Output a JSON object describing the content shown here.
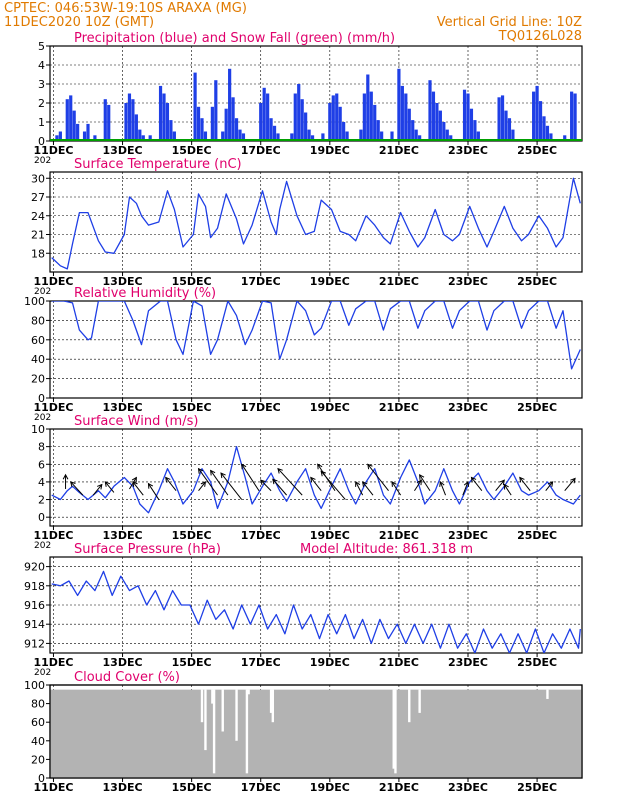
{
  "header": {
    "station": "CPTEC:   046:53W-19:10S   ARAXA (MG)",
    "run": "11DEC2020 10Z (GMT)",
    "grid_note": "Vertical Grid Line: 10Z",
    "code": "TQ0126L028"
  },
  "colors": {
    "header": "#e07a00",
    "title": "#e0006c",
    "line": "#1f3fe6",
    "precip": "#1f3fe6",
    "snow": "#00a000",
    "cloud": "#b3b3b3"
  },
  "x_axis": {
    "ticks": [
      "11DEC",
      "13DEC",
      "15DEC",
      "17DEC",
      "19DEC",
      "21DEC",
      "23DEC",
      "25DEC"
    ],
    "tick_days": [
      0,
      2,
      4,
      6,
      8,
      10,
      12,
      14
    ],
    "range_days": [
      -0.1,
      15.3
    ],
    "year_fragment": "202"
  },
  "chart_data": [
    {
      "type": "bar",
      "title": "Precipitation (blue) and Snow Fall (green) (mm/h)",
      "ylim": [
        0,
        5
      ],
      "yticks": [
        0,
        1,
        2,
        3,
        4,
        5
      ],
      "series": [
        {
          "name": "Precipitation",
          "x": [
            0.1,
            0.2,
            0.4,
            0.5,
            0.6,
            0.7,
            0.9,
            1.0,
            1.2,
            1.5,
            1.6,
            2.1,
            2.2,
            2.3,
            2.4,
            2.5,
            2.6,
            2.8,
            3.1,
            3.2,
            3.3,
            3.4,
            3.5,
            4.1,
            4.2,
            4.3,
            4.4,
            4.6,
            4.7,
            4.9,
            5.0,
            5.1,
            5.2,
            5.3,
            5.4,
            5.5,
            6.0,
            6.1,
            6.2,
            6.3,
            6.4,
            6.5,
            6.9,
            7.0,
            7.1,
            7.2,
            7.3,
            7.4,
            7.5,
            7.8,
            8.0,
            8.1,
            8.2,
            8.3,
            8.4,
            8.5,
            8.9,
            9.0,
            9.1,
            9.2,
            9.3,
            9.4,
            9.5,
            9.8,
            10.0,
            10.1,
            10.2,
            10.3,
            10.4,
            10.5,
            10.6,
            10.9,
            11.0,
            11.1,
            11.2,
            11.3,
            11.4,
            11.5,
            11.9,
            12.0,
            12.1,
            12.2,
            12.3,
            12.9,
            13.0,
            13.1,
            13.2,
            13.3,
            13.9,
            14.0,
            14.1,
            14.2,
            14.3,
            14.4,
            14.8,
            15.0,
            15.1
          ],
          "values": [
            0.3,
            0.5,
            2.2,
            2.4,
            1.6,
            0.9,
            0.5,
            0.9,
            0.3,
            2.2,
            1.9,
            2.0,
            2.5,
            2.2,
            1.4,
            0.6,
            0.3,
            0.3,
            2.9,
            2.5,
            2.0,
            1.1,
            0.5,
            3.6,
            1.8,
            1.2,
            0.5,
            1.8,
            3.2,
            0.5,
            1.7,
            3.8,
            2.3,
            1.2,
            0.6,
            0.4,
            2.0,
            2.8,
            2.5,
            1.2,
            0.8,
            0.4,
            0.4,
            2.5,
            3.0,
            2.2,
            1.5,
            0.6,
            0.3,
            0.4,
            2.0,
            2.4,
            2.5,
            1.8,
            1.0,
            0.5,
            0.6,
            2.5,
            3.5,
            2.6,
            1.9,
            1.1,
            0.5,
            0.5,
            3.8,
            2.9,
            2.5,
            1.7,
            1.1,
            0.6,
            0.3,
            3.2,
            2.6,
            2.0,
            1.6,
            1.0,
            0.6,
            0.3,
            2.7,
            2.5,
            1.7,
            1.1,
            0.5,
            2.3,
            2.4,
            1.6,
            1.2,
            0.6,
            2.6,
            2.9,
            2.1,
            1.3,
            0.8,
            0.4,
            0.3,
            2.6,
            2.5
          ]
        },
        {
          "name": "Snow Fall",
          "x": [],
          "values": []
        }
      ]
    },
    {
      "type": "line",
      "title": "Surface Temperature (nC)",
      "ylim": [
        15,
        31
      ],
      "yticks": [
        18,
        21,
        24,
        27,
        30
      ],
      "x": [
        -0.05,
        0.2,
        0.4,
        0.55,
        0.75,
        1.0,
        1.3,
        1.5,
        1.75,
        2.05,
        2.2,
        2.4,
        2.55,
        2.75,
        3.05,
        3.3,
        3.5,
        3.75,
        4.05,
        4.2,
        4.4,
        4.55,
        4.75,
        5.0,
        5.3,
        5.5,
        5.75,
        6.05,
        6.3,
        6.45,
        6.55,
        6.75,
        7.05,
        7.3,
        7.55,
        7.75,
        8.05,
        8.3,
        8.55,
        8.75,
        9.05,
        9.3,
        9.55,
        9.75,
        10.05,
        10.3,
        10.55,
        10.75,
        11.05,
        11.3,
        11.55,
        11.75,
        12.05,
        12.3,
        12.55,
        12.75,
        13.05,
        13.3,
        13.55,
        13.75,
        14.05,
        14.3,
        14.55,
        14.75,
        15.05,
        15.25
      ],
      "values": [
        17.3,
        16.0,
        15.5,
        19.5,
        24.5,
        24.5,
        20.0,
        18.2,
        18.0,
        21.0,
        27.0,
        26.0,
        24.0,
        22.5,
        23.0,
        28.0,
        25.0,
        19.0,
        21.0,
        27.5,
        25.5,
        20.5,
        22.0,
        27.5,
        23.5,
        19.5,
        22.5,
        28.0,
        23.0,
        21.0,
        25.0,
        29.5,
        24.0,
        21.0,
        21.5,
        26.5,
        25.0,
        21.5,
        21.0,
        20.0,
        24.0,
        22.5,
        20.5,
        19.5,
        24.5,
        21.5,
        19.0,
        20.5,
        25.0,
        21.0,
        20.0,
        21.0,
        25.5,
        22.0,
        19.0,
        21.5,
        25.5,
        22.0,
        20.0,
        21.0,
        24.0,
        22.0,
        19.0,
        20.5,
        30.0,
        26.0
      ]
    },
    {
      "type": "line",
      "title": "Relative Humidity (%)",
      "ylim": [
        0,
        100
      ],
      "yticks": [
        0,
        20,
        40,
        60,
        80,
        100
      ],
      "x": [
        -0.05,
        0.3,
        0.55,
        0.75,
        1.0,
        1.1,
        1.3,
        2.05,
        2.3,
        2.55,
        2.75,
        3.1,
        3.3,
        3.55,
        3.75,
        4.05,
        4.3,
        4.55,
        4.75,
        5.05,
        5.3,
        5.55,
        5.75,
        6.05,
        6.3,
        6.55,
        6.75,
        7.05,
        7.3,
        7.55,
        7.75,
        8.05,
        8.3,
        8.55,
        8.75,
        9.05,
        9.3,
        9.55,
        9.75,
        10.05,
        10.3,
        10.55,
        10.75,
        11.05,
        11.3,
        11.55,
        11.75,
        12.05,
        12.3,
        12.55,
        12.75,
        13.05,
        13.3,
        13.55,
        13.75,
        14.05,
        14.3,
        14.55,
        14.75,
        15.0,
        15.25
      ],
      "values": [
        100,
        100,
        98,
        70,
        60,
        62,
        100,
        100,
        80,
        55,
        90,
        100,
        100,
        60,
        45,
        100,
        95,
        45,
        60,
        100,
        85,
        55,
        70,
        100,
        98,
        40,
        60,
        100,
        90,
        65,
        72,
        100,
        100,
        75,
        92,
        100,
        100,
        70,
        92,
        100,
        100,
        72,
        90,
        100,
        100,
        72,
        90,
        100,
        100,
        70,
        90,
        100,
        100,
        72,
        90,
        100,
        100,
        72,
        90,
        30,
        50
      ]
    },
    {
      "type": "line",
      "title": "Surface Wind (m/s)",
      "ylim": [
        -1,
        10
      ],
      "yticks": [
        0,
        2,
        4,
        6,
        8,
        10
      ],
      "x": [
        -0.05,
        0.2,
        0.4,
        0.55,
        0.75,
        1.0,
        1.3,
        1.5,
        1.75,
        2.05,
        2.3,
        2.5,
        2.75,
        3.05,
        3.3,
        3.5,
        3.75,
        4.05,
        4.3,
        4.55,
        4.75,
        5.05,
        5.3,
        5.55,
        5.75,
        6.05,
        6.3,
        6.55,
        6.75,
        7.05,
        7.3,
        7.55,
        7.75,
        8.05,
        8.3,
        8.55,
        8.75,
        9.05,
        9.3,
        9.55,
        9.75,
        10.05,
        10.3,
        10.55,
        10.75,
        11.05,
        11.3,
        11.55,
        11.75,
        12.05,
        12.3,
        12.55,
        12.75,
        13.05,
        13.3,
        13.55,
        13.75,
        14.05,
        14.3,
        14.55,
        14.75,
        15.05,
        15.25
      ],
      "values": [
        2.5,
        2.0,
        3.0,
        3.5,
        2.8,
        2.0,
        3.0,
        2.2,
        3.5,
        4.5,
        3.5,
        1.5,
        0.5,
        3.0,
        5.5,
        4.0,
        1.5,
        3.0,
        5.5,
        4.0,
        1.0,
        4.0,
        8.0,
        4.5,
        1.5,
        3.5,
        5.0,
        3.0,
        1.8,
        4.0,
        5.5,
        2.5,
        1.0,
        3.5,
        5.5,
        3.0,
        1.5,
        4.0,
        5.5,
        2.5,
        1.5,
        4.5,
        6.5,
        4.0,
        1.5,
        3.0,
        5.5,
        3.0,
        1.5,
        4.0,
        5.0,
        3.0,
        2.0,
        3.5,
        5.0,
        3.0,
        2.5,
        3.0,
        4.0,
        2.5,
        2.0,
        1.5,
        2.5
      ],
      "vectors": {
        "x": [
          0.35,
          0.85,
          1.15,
          1.75,
          2.2,
          2.6,
          3.05,
          3.55,
          4.2,
          4.75,
          5.05,
          5.45,
          5.95,
          6.3,
          6.75,
          7.2,
          7.75,
          8.15,
          8.45,
          8.95,
          9.25,
          9.7,
          10.05,
          10.45,
          10.9,
          11.35,
          11.85,
          12.4,
          12.8,
          13.25,
          13.8,
          14.25,
          14.8
        ],
        "y": [
          3.2,
          2.5,
          2.5,
          2.8,
          3.2,
          2.5,
          2.0,
          3.0,
          3.0,
          2.5,
          2.5,
          2.0,
          3.0,
          3.0,
          2.5,
          2.5,
          3.0,
          3.0,
          2.0,
          2.5,
          2.5,
          3.0,
          2.5,
          3.0,
          3.0,
          2.5,
          2.5,
          3.0,
          3.0,
          2.5,
          3.0,
          3.0,
          3.0
        ],
        "dx": [
          0.0,
          -0.35,
          0.25,
          -0.25,
          0.2,
          -0.3,
          -0.3,
          -0.3,
          0.2,
          -0.55,
          -0.5,
          -0.6,
          -0.5,
          -0.3,
          -0.4,
          -0.7,
          -0.3,
          -0.5,
          -0.7,
          -0.2,
          -0.3,
          -0.6,
          -0.25,
          0.2,
          -0.3,
          -0.15,
          0.15,
          -0.3,
          0.25,
          -0.2,
          -0.3,
          0.2,
          0.3
        ],
        "dy": [
          1.6,
          1.5,
          1.2,
          1.2,
          1.3,
          1.5,
          1.8,
          1.5,
          1.0,
          3.0,
          2.8,
          3.0,
          3.0,
          1.2,
          1.8,
          3.0,
          1.5,
          3.0,
          3.2,
          1.5,
          1.5,
          3.0,
          1.5,
          1.2,
          1.8,
          1.5,
          1.5,
          1.5,
          1.2,
          1.2,
          1.5,
          1.0,
          1.4
        ]
      }
    },
    {
      "type": "line",
      "title": "Surface Pressure (hPa)",
      "annotation": "Model Altitude: 861.318 m",
      "ylim": [
        911,
        921
      ],
      "yticks": [
        912,
        914,
        916,
        918,
        920
      ],
      "x": [
        -0.05,
        0.2,
        0.45,
        0.7,
        0.95,
        1.2,
        1.45,
        1.7,
        1.95,
        2.2,
        2.45,
        2.7,
        2.95,
        3.2,
        3.45,
        3.7,
        3.95,
        4.2,
        4.45,
        4.7,
        4.95,
        5.2,
        5.45,
        5.7,
        5.95,
        6.2,
        6.45,
        6.7,
        6.95,
        7.2,
        7.45,
        7.7,
        7.95,
        8.2,
        8.45,
        8.7,
        8.95,
        9.2,
        9.45,
        9.7,
        9.95,
        10.2,
        10.45,
        10.7,
        10.95,
        11.2,
        11.45,
        11.7,
        11.95,
        12.2,
        12.45,
        12.7,
        12.95,
        13.2,
        13.45,
        13.7,
        13.95,
        14.2,
        14.45,
        14.7,
        14.95,
        15.2,
        15.25
      ],
      "values": [
        918.2,
        918.0,
        918.5,
        917.0,
        918.5,
        917.5,
        919.5,
        917.0,
        919.0,
        917.5,
        918.0,
        916.0,
        917.5,
        915.5,
        917.5,
        916.0,
        916.0,
        914.0,
        916.5,
        914.5,
        915.5,
        913.5,
        916.0,
        914.0,
        916.0,
        913.5,
        915.0,
        913.0,
        916.0,
        913.5,
        915.0,
        912.5,
        915.0,
        913.0,
        915.0,
        912.5,
        914.5,
        912.0,
        914.5,
        912.5,
        914.0,
        912.0,
        914.0,
        912.0,
        914.0,
        911.5,
        914.0,
        911.5,
        913.0,
        911.0,
        913.5,
        911.5,
        913.0,
        911.0,
        913.0,
        911.0,
        913.5,
        911.0,
        913.0,
        911.5,
        913.5,
        911.5,
        913.5
      ]
    },
    {
      "type": "bar",
      "title": "Cloud Cover (%)",
      "ylim": [
        0,
        100
      ],
      "yticks": [
        0,
        20,
        40,
        60,
        80,
        100
      ],
      "baseline": 95,
      "gaps": {
        "x": [
          4.3,
          4.4,
          4.6,
          4.65,
          4.9,
          5.3,
          5.6,
          5.65,
          6.3,
          6.35,
          9.85,
          9.9,
          10.3,
          10.6,
          14.3
        ],
        "values": [
          60,
          30,
          80,
          5,
          50,
          40,
          5,
          90,
          70,
          60,
          10,
          5,
          60,
          70,
          85
        ]
      }
    }
  ]
}
